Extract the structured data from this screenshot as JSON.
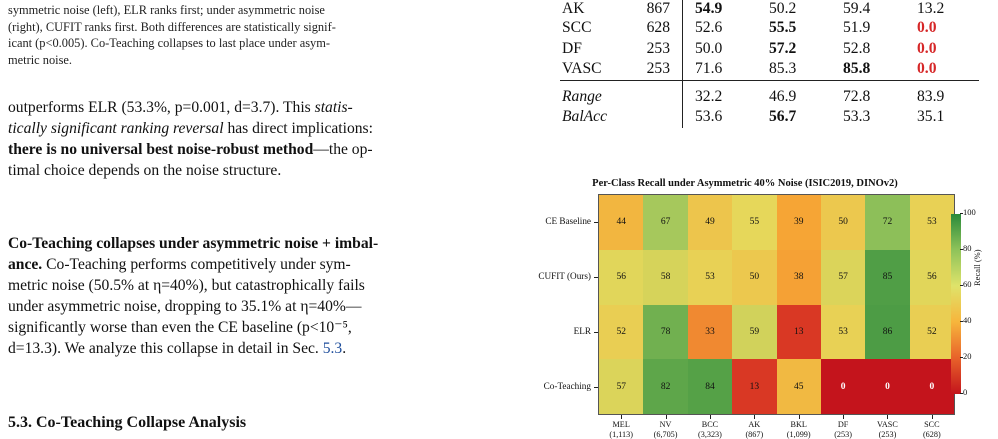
{
  "caption": {
    "line1": "symmetric noise (left), ELR ranks first; under asymmetric noise",
    "line2": "(right), CUFIT ranks first. Both differences are statistically signif-",
    "line3": "icant (p<0.005). Co-Teaching collapses to last place under asym-",
    "line4": "metric noise."
  },
  "paragraph1": {
    "l1a": "outperforms ELR (53.3%, p=0.001, d=3.7). This ",
    "l1b": "statis-",
    "l2a": "tically significant ranking reversal",
    "l2b": " has direct implications:",
    "l3a": "there is no universal best noise-robust method",
    "l3b": "—the op-",
    "l4": "timal choice depends on the noise structure."
  },
  "paragraph2": {
    "l1": "Co-Teaching collapses under asymmetric noise + imbal-",
    "l2a": "ance.",
    "l2b": "  Co-Teaching performs competitively under sym-",
    "l3": "metric noise (50.5% at η=40%), but catastrophically fails",
    "l4": "under asymmetric noise, dropping to 35.1% at η=40%—",
    "l5": "significantly worse than even the CE baseline (p<10⁻⁵,",
    "l6a": "d=13.3). We analyze this collapse in detail in Sec. ",
    "l6b": "5.3",
    "l6c": "."
  },
  "section_heading": "5.3. Co-Teaching Collapse Analysis",
  "table": {
    "rows": [
      {
        "name": "AK",
        "n": "867",
        "v1": "54.9",
        "v2": "50.2",
        "v3": "59.4",
        "v4": "13.2",
        "bold": [
          1
        ],
        "red": []
      },
      {
        "name": "SCC",
        "n": "628",
        "v1": "52.6",
        "v2": "55.5",
        "v3": "51.9",
        "v4": "0.0",
        "bold": [
          2
        ],
        "red": [
          4
        ]
      },
      {
        "name": "DF",
        "n": "253",
        "v1": "50.0",
        "v2": "57.2",
        "v3": "52.8",
        "v4": "0.0",
        "bold": [
          2
        ],
        "red": [
          4
        ]
      },
      {
        "name": "VASC",
        "n": "253",
        "v1": "71.6",
        "v2": "85.3",
        "v3": "85.8",
        "v4": "0.0",
        "bold": [
          3
        ],
        "red": [
          4
        ]
      }
    ],
    "summary": [
      {
        "name": "Range",
        "v1": "32.2",
        "v2": "46.9",
        "v3": "72.8",
        "v4": "83.9"
      },
      {
        "name": "BalAcc",
        "v1": "53.6",
        "v2": "56.7",
        "v3": "53.3",
        "v4": "35.1"
      }
    ]
  },
  "chart_data": {
    "type": "heatmap",
    "title": "Per-Class Recall under Asymmetric 40% Noise (ISIC2019, DINOv2)",
    "rows": [
      "CE Baseline",
      "CUFIT (Ours)",
      "ELR",
      "Co-Teaching"
    ],
    "columns": [
      {
        "name": "MEL",
        "n": "(1,113)"
      },
      {
        "name": "NV",
        "n": "(6,705)"
      },
      {
        "name": "BCC",
        "n": "(3,323)"
      },
      {
        "name": "AK",
        "n": "(867)"
      },
      {
        "name": "BKL",
        "n": "(1,099)"
      },
      {
        "name": "DF",
        "n": "(253)"
      },
      {
        "name": "VASC",
        "n": "(253)"
      },
      {
        "name": "SCC",
        "n": "(628)"
      }
    ],
    "values": [
      [
        44,
        67,
        49,
        55,
        39,
        50,
        72,
        53
      ],
      [
        56,
        58,
        53,
        50,
        38,
        57,
        85,
        56
      ],
      [
        52,
        78,
        33,
        59,
        13,
        53,
        86,
        52
      ],
      [
        57,
        82,
        84,
        13,
        45,
        0,
        0,
        0
      ]
    ],
    "colorbar_label": "Recall (%)",
    "colorbar_ticks": [
      "100",
      "80",
      "60",
      "40",
      "20",
      "0"
    ],
    "range": [
      0,
      100
    ]
  }
}
